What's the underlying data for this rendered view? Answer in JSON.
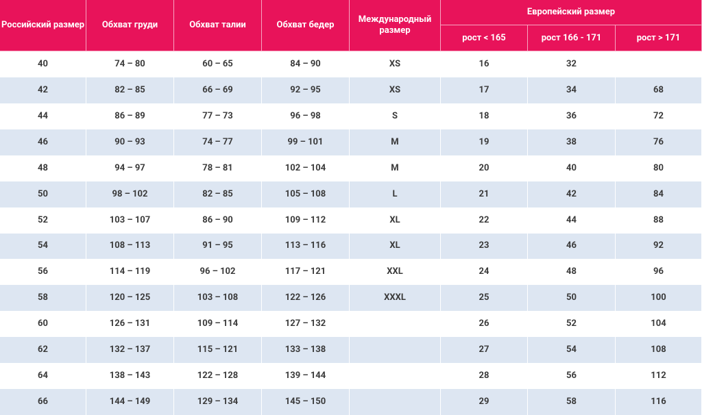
{
  "table": {
    "header": {
      "columns": [
        "Российский размер",
        "Обхват груди",
        "Обхват талии",
        "Обхват бедер",
        "Международный размер"
      ],
      "group": "Европейский размер",
      "subcolumns": [
        "рост < 165",
        "рост 166 - 171",
        "рост > 171"
      ]
    },
    "rows": [
      [
        40,
        "74 – 80",
        "60 – 65",
        "84 – 90",
        "XS",
        16,
        32,
        null
      ],
      [
        42,
        "82 – 85",
        "66 – 69",
        "92 – 95",
        "XS",
        17,
        34,
        68
      ],
      [
        44,
        "86 – 89",
        "77 – 73",
        "96 – 98",
        "S",
        18,
        36,
        72
      ],
      [
        46,
        "90 – 93",
        "74 – 77",
        "99 – 101",
        "M",
        19,
        38,
        76
      ],
      [
        48,
        "94 – 97",
        "78 – 81",
        "102 – 104",
        "M",
        20,
        40,
        80
      ],
      [
        50,
        "98 – 102",
        "82 – 85",
        "105 – 108",
        "L",
        21,
        42,
        84
      ],
      [
        52,
        "103 – 107",
        "86 – 90",
        "109 – 112",
        "XL",
        22,
        44,
        88
      ],
      [
        54,
        "108 – 113",
        "91 – 95",
        "113 – 116",
        "XL",
        23,
        46,
        92
      ],
      [
        56,
        "114 – 119",
        "96 – 102",
        "117 – 121",
        "XXL",
        24,
        48,
        96
      ],
      [
        58,
        "120 – 125",
        "103 – 108",
        "122 – 126",
        "XXXL",
        25,
        50,
        100
      ],
      [
        60,
        "126 – 131",
        "109 – 114",
        "127 – 132",
        null,
        26,
        52,
        104
      ],
      [
        62,
        "132 – 137",
        "115 – 121",
        "133 – 138",
        null,
        27,
        54,
        108
      ],
      [
        64,
        "138 – 143",
        "122 – 128",
        "139 – 144",
        null,
        28,
        56,
        112
      ],
      [
        66,
        "144 – 149",
        "129 – 134",
        "145 – 150",
        null,
        29,
        58,
        116
      ]
    ]
  }
}
